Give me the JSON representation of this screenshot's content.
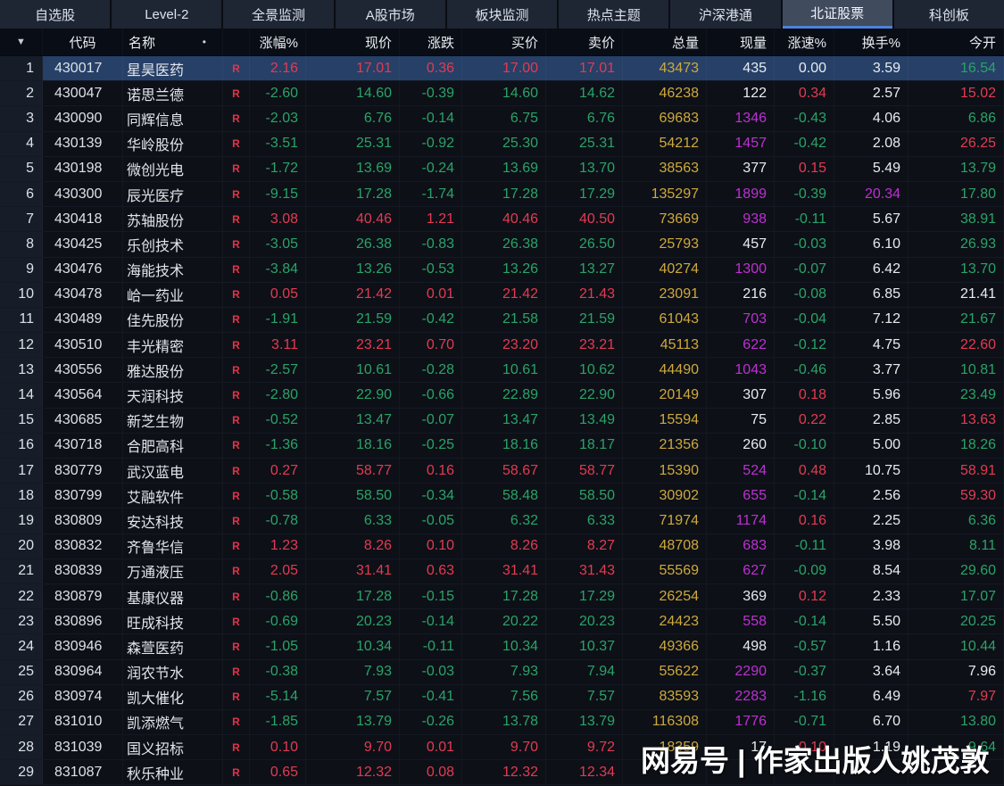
{
  "app": {
    "watermark": "网易号 | 作家出版人姚茂敦"
  },
  "palette": {
    "r": "#e23b52",
    "g": "#2aa368",
    "y": "#cfa93c",
    "m": "#bf2fd4",
    "w": "#e8ebef"
  },
  "tabs": {
    "items": [
      "自选股",
      "Level-2",
      "全景监测",
      "A股市场",
      "板块监测",
      "热点主题",
      "沪深港通",
      "北证股票",
      "科创板"
    ],
    "active_index": 7
  },
  "table": {
    "columns": [
      "▼",
      "代码",
      "名称",
      "",
      "涨幅%",
      "现价",
      "涨跌",
      "买价",
      "卖价",
      "总量",
      "现量",
      "涨速%",
      "换手%",
      "今开"
    ],
    "name_marker": "•",
    "rows": [
      {
        "num": "1",
        "code": "430017",
        "name": "星昊医药",
        "flag": "R",
        "selected": true,
        "v": [
          "2.16",
          "17.01",
          "0.36",
          "17.00",
          "17.01",
          "43473",
          "435",
          "0.00",
          "3.59",
          "16.54"
        ],
        "c": [
          "r",
          "r",
          "r",
          "r",
          "r",
          "y",
          "w",
          "w",
          "w",
          "g"
        ]
      },
      {
        "num": "2",
        "code": "430047",
        "name": "诺思兰德",
        "flag": "R",
        "selected": false,
        "v": [
          "-2.60",
          "14.60",
          "-0.39",
          "14.60",
          "14.62",
          "46238",
          "122",
          "0.34",
          "2.57",
          "15.02"
        ],
        "c": [
          "g",
          "g",
          "g",
          "g",
          "g",
          "y",
          "w",
          "r",
          "w",
          "r"
        ]
      },
      {
        "num": "3",
        "code": "430090",
        "name": "同辉信息",
        "flag": "R",
        "selected": false,
        "v": [
          "-2.03",
          "6.76",
          "-0.14",
          "6.75",
          "6.76",
          "69683",
          "1346",
          "-0.43",
          "4.06",
          "6.86"
        ],
        "c": [
          "g",
          "g",
          "g",
          "g",
          "g",
          "y",
          "m",
          "g",
          "w",
          "g"
        ]
      },
      {
        "num": "4",
        "code": "430139",
        "name": "华岭股份",
        "flag": "R",
        "selected": false,
        "v": [
          "-3.51",
          "25.31",
          "-0.92",
          "25.30",
          "25.31",
          "54212",
          "1457",
          "-0.42",
          "2.08",
          "26.25"
        ],
        "c": [
          "g",
          "g",
          "g",
          "g",
          "g",
          "y",
          "m",
          "g",
          "w",
          "r"
        ]
      },
      {
        "num": "5",
        "code": "430198",
        "name": "微创光电",
        "flag": "R",
        "selected": false,
        "v": [
          "-1.72",
          "13.69",
          "-0.24",
          "13.69",
          "13.70",
          "38563",
          "377",
          "0.15",
          "5.49",
          "13.79"
        ],
        "c": [
          "g",
          "g",
          "g",
          "g",
          "g",
          "y",
          "w",
          "r",
          "w",
          "g"
        ]
      },
      {
        "num": "6",
        "code": "430300",
        "name": "辰光医疗",
        "flag": "R",
        "selected": false,
        "v": [
          "-9.15",
          "17.28",
          "-1.74",
          "17.28",
          "17.29",
          "135297",
          "1899",
          "-0.39",
          "20.34",
          "17.80"
        ],
        "c": [
          "g",
          "g",
          "g",
          "g",
          "g",
          "y",
          "m",
          "g",
          "m",
          "g"
        ]
      },
      {
        "num": "7",
        "code": "430418",
        "name": "苏轴股份",
        "flag": "R",
        "selected": false,
        "v": [
          "3.08",
          "40.46",
          "1.21",
          "40.46",
          "40.50",
          "73669",
          "938",
          "-0.11",
          "5.67",
          "38.91"
        ],
        "c": [
          "r",
          "r",
          "r",
          "r",
          "r",
          "y",
          "m",
          "g",
          "w",
          "g"
        ]
      },
      {
        "num": "8",
        "code": "430425",
        "name": "乐创技术",
        "flag": "R",
        "selected": false,
        "v": [
          "-3.05",
          "26.38",
          "-0.83",
          "26.38",
          "26.50",
          "25793",
          "457",
          "-0.03",
          "6.10",
          "26.93"
        ],
        "c": [
          "g",
          "g",
          "g",
          "g",
          "g",
          "y",
          "w",
          "g",
          "w",
          "g"
        ]
      },
      {
        "num": "9",
        "code": "430476",
        "name": "海能技术",
        "flag": "R",
        "selected": false,
        "v": [
          "-3.84",
          "13.26",
          "-0.53",
          "13.26",
          "13.27",
          "40274",
          "1300",
          "-0.07",
          "6.42",
          "13.70"
        ],
        "c": [
          "g",
          "g",
          "g",
          "g",
          "g",
          "y",
          "m",
          "g",
          "w",
          "g"
        ]
      },
      {
        "num": "10",
        "code": "430478",
        "name": "峆一药业",
        "flag": "R",
        "selected": false,
        "v": [
          "0.05",
          "21.42",
          "0.01",
          "21.42",
          "21.43",
          "23091",
          "216",
          "-0.08",
          "6.85",
          "21.41"
        ],
        "c": [
          "r",
          "r",
          "r",
          "r",
          "r",
          "y",
          "w",
          "g",
          "w",
          "w"
        ]
      },
      {
        "num": "11",
        "code": "430489",
        "name": "佳先股份",
        "flag": "R",
        "selected": false,
        "v": [
          "-1.91",
          "21.59",
          "-0.42",
          "21.58",
          "21.59",
          "61043",
          "703",
          "-0.04",
          "7.12",
          "21.67"
        ],
        "c": [
          "g",
          "g",
          "g",
          "g",
          "g",
          "y",
          "m",
          "g",
          "w",
          "g"
        ]
      },
      {
        "num": "12",
        "code": "430510",
        "name": "丰光精密",
        "flag": "R",
        "selected": false,
        "v": [
          "3.11",
          "23.21",
          "0.70",
          "23.20",
          "23.21",
          "45113",
          "622",
          "-0.12",
          "4.75",
          "22.60"
        ],
        "c": [
          "r",
          "r",
          "r",
          "r",
          "r",
          "y",
          "m",
          "g",
          "w",
          "r"
        ]
      },
      {
        "num": "13",
        "code": "430556",
        "name": "雅达股份",
        "flag": "R",
        "selected": false,
        "v": [
          "-2.57",
          "10.61",
          "-0.28",
          "10.61",
          "10.62",
          "44490",
          "1043",
          "-0.46",
          "3.77",
          "10.81"
        ],
        "c": [
          "g",
          "g",
          "g",
          "g",
          "g",
          "y",
          "m",
          "g",
          "w",
          "g"
        ]
      },
      {
        "num": "14",
        "code": "430564",
        "name": "天润科技",
        "flag": "R",
        "selected": false,
        "v": [
          "-2.80",
          "22.90",
          "-0.66",
          "22.89",
          "22.90",
          "20149",
          "307",
          "0.18",
          "5.96",
          "23.49"
        ],
        "c": [
          "g",
          "g",
          "g",
          "g",
          "g",
          "y",
          "w",
          "r",
          "w",
          "g"
        ]
      },
      {
        "num": "15",
        "code": "430685",
        "name": "新芝生物",
        "flag": "R",
        "selected": false,
        "v": [
          "-0.52",
          "13.47",
          "-0.07",
          "13.47",
          "13.49",
          "15594",
          "75",
          "0.22",
          "2.85",
          "13.63"
        ],
        "c": [
          "g",
          "g",
          "g",
          "g",
          "g",
          "y",
          "w",
          "r",
          "w",
          "r"
        ]
      },
      {
        "num": "16",
        "code": "430718",
        "name": "合肥高科",
        "flag": "R",
        "selected": false,
        "v": [
          "-1.36",
          "18.16",
          "-0.25",
          "18.16",
          "18.17",
          "21356",
          "260",
          "-0.10",
          "5.00",
          "18.26"
        ],
        "c": [
          "g",
          "g",
          "g",
          "g",
          "g",
          "y",
          "w",
          "g",
          "w",
          "g"
        ]
      },
      {
        "num": "17",
        "code": "830779",
        "name": "武汉蓝电",
        "flag": "R",
        "selected": false,
        "v": [
          "0.27",
          "58.77",
          "0.16",
          "58.67",
          "58.77",
          "15390",
          "524",
          "0.48",
          "10.75",
          "58.91"
        ],
        "c": [
          "r",
          "r",
          "r",
          "r",
          "r",
          "y",
          "m",
          "r",
          "w",
          "r"
        ]
      },
      {
        "num": "18",
        "code": "830799",
        "name": "艾融软件",
        "flag": "R",
        "selected": false,
        "v": [
          "-0.58",
          "58.50",
          "-0.34",
          "58.48",
          "58.50",
          "30902",
          "655",
          "-0.14",
          "2.56",
          "59.30"
        ],
        "c": [
          "g",
          "g",
          "g",
          "g",
          "g",
          "y",
          "m",
          "g",
          "w",
          "r"
        ]
      },
      {
        "num": "19",
        "code": "830809",
        "name": "安达科技",
        "flag": "R",
        "selected": false,
        "v": [
          "-0.78",
          "6.33",
          "-0.05",
          "6.32",
          "6.33",
          "71974",
          "1174",
          "0.16",
          "2.25",
          "6.36"
        ],
        "c": [
          "g",
          "g",
          "g",
          "g",
          "g",
          "y",
          "m",
          "r",
          "w",
          "g"
        ]
      },
      {
        "num": "20",
        "code": "830832",
        "name": "齐鲁华信",
        "flag": "R",
        "selected": false,
        "v": [
          "1.23",
          "8.26",
          "0.10",
          "8.26",
          "8.27",
          "48708",
          "683",
          "-0.11",
          "3.98",
          "8.11"
        ],
        "c": [
          "r",
          "r",
          "r",
          "r",
          "r",
          "y",
          "m",
          "g",
          "w",
          "g"
        ]
      },
      {
        "num": "21",
        "code": "830839",
        "name": "万通液压",
        "flag": "R",
        "selected": false,
        "v": [
          "2.05",
          "31.41",
          "0.63",
          "31.41",
          "31.43",
          "55569",
          "627",
          "-0.09",
          "8.54",
          "29.60"
        ],
        "c": [
          "r",
          "r",
          "r",
          "r",
          "r",
          "y",
          "m",
          "g",
          "w",
          "g"
        ]
      },
      {
        "num": "22",
        "code": "830879",
        "name": "基康仪器",
        "flag": "R",
        "selected": false,
        "v": [
          "-0.86",
          "17.28",
          "-0.15",
          "17.28",
          "17.29",
          "26254",
          "369",
          "0.12",
          "2.33",
          "17.07"
        ],
        "c": [
          "g",
          "g",
          "g",
          "g",
          "g",
          "y",
          "w",
          "r",
          "w",
          "g"
        ]
      },
      {
        "num": "23",
        "code": "830896",
        "name": "旺成科技",
        "flag": "R",
        "selected": false,
        "v": [
          "-0.69",
          "20.23",
          "-0.14",
          "20.22",
          "20.23",
          "24423",
          "558",
          "-0.14",
          "5.50",
          "20.25"
        ],
        "c": [
          "g",
          "g",
          "g",
          "g",
          "g",
          "y",
          "m",
          "g",
          "w",
          "g"
        ]
      },
      {
        "num": "24",
        "code": "830946",
        "name": "森萱医药",
        "flag": "R",
        "selected": false,
        "v": [
          "-1.05",
          "10.34",
          "-0.11",
          "10.34",
          "10.37",
          "49366",
          "498",
          "-0.57",
          "1.16",
          "10.44"
        ],
        "c": [
          "g",
          "g",
          "g",
          "g",
          "g",
          "y",
          "w",
          "g",
          "w",
          "g"
        ]
      },
      {
        "num": "25",
        "code": "830964",
        "name": "润农节水",
        "flag": "R",
        "selected": false,
        "v": [
          "-0.38",
          "7.93",
          "-0.03",
          "7.93",
          "7.94",
          "55622",
          "2290",
          "-0.37",
          "3.64",
          "7.96"
        ],
        "c": [
          "g",
          "g",
          "g",
          "g",
          "g",
          "y",
          "m",
          "g",
          "w",
          "w"
        ]
      },
      {
        "num": "26",
        "code": "830974",
        "name": "凯大催化",
        "flag": "R",
        "selected": false,
        "v": [
          "-5.14",
          "7.57",
          "-0.41",
          "7.56",
          "7.57",
          "83593",
          "2283",
          "-1.16",
          "6.49",
          "7.97"
        ],
        "c": [
          "g",
          "g",
          "g",
          "g",
          "g",
          "y",
          "m",
          "g",
          "w",
          "r"
        ]
      },
      {
        "num": "27",
        "code": "831010",
        "name": "凯添燃气",
        "flag": "R",
        "selected": false,
        "v": [
          "-1.85",
          "13.79",
          "-0.26",
          "13.78",
          "13.79",
          "116308",
          "1776",
          "-0.71",
          "6.70",
          "13.80"
        ],
        "c": [
          "g",
          "g",
          "g",
          "g",
          "g",
          "y",
          "m",
          "g",
          "w",
          "g"
        ]
      },
      {
        "num": "28",
        "code": "831039",
        "name": "国义招标",
        "flag": "R",
        "selected": false,
        "v": [
          "0.10",
          "9.70",
          "0.01",
          "9.70",
          "9.72",
          "18359",
          "17",
          "0.10",
          "1.19",
          "9.64"
        ],
        "c": [
          "r",
          "r",
          "r",
          "r",
          "r",
          "y",
          "w",
          "r",
          "w",
          "g"
        ]
      },
      {
        "num": "29",
        "code": "831087",
        "name": "秋乐种业",
        "flag": "R",
        "selected": false,
        "v": [
          "0.65",
          "12.32",
          "0.08",
          "12.32",
          "12.34",
          "",
          "",
          "",
          "",
          ""
        ],
        "c": [
          "r",
          "r",
          "r",
          "r",
          "r",
          "y",
          "w",
          "w",
          "w",
          "w"
        ]
      }
    ]
  }
}
